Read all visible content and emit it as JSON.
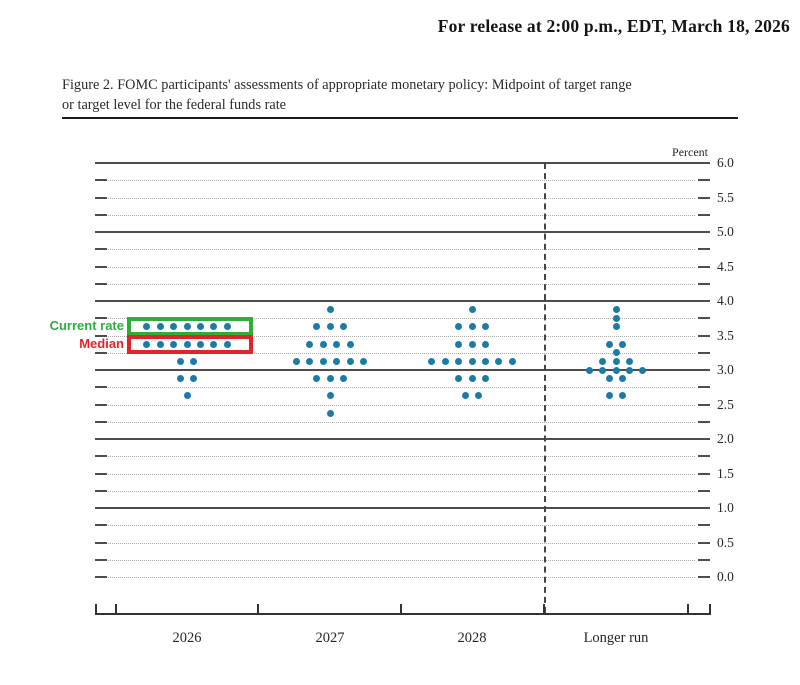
{
  "document": {
    "release_line": "For release at 2:00 p.m., EDT, March 18, 2026",
    "caption_line1": "Figure 2. FOMC participants' assessments of appropriate monetary policy: Midpoint of target range",
    "caption_line2": "or target level for the federal funds rate"
  },
  "chart_data": {
    "type": "scatter",
    "title": "FOMC participants' assessments of appropriate monetary policy: Midpoint of target range or target level for the federal funds rate",
    "ylabel": "Percent",
    "xlabel": "",
    "ylim": [
      0.0,
      6.0
    ],
    "y_label_step": 0.5,
    "gridline_step": 0.25,
    "grid": true,
    "legend_position": "none",
    "y_tick_labels": [
      "0.0",
      "0.5",
      "1.0",
      "1.5",
      "2.0",
      "2.5",
      "3.0",
      "3.5",
      "4.0",
      "4.5",
      "5.0",
      "5.5",
      "6.0"
    ],
    "categories": [
      "2026",
      "2027",
      "2028",
      "Longer run"
    ],
    "separator_after_category": "2028",
    "dot_color": "#1b7aa6",
    "series": [
      {
        "category": "2026",
        "dots": [
          {
            "rate": 3.625,
            "count": 7
          },
          {
            "rate": 3.375,
            "count": 7
          },
          {
            "rate": 3.125,
            "count": 2
          },
          {
            "rate": 2.875,
            "count": 2
          },
          {
            "rate": 2.625,
            "count": 1
          }
        ]
      },
      {
        "category": "2027",
        "dots": [
          {
            "rate": 3.875,
            "count": 1
          },
          {
            "rate": 3.625,
            "count": 3
          },
          {
            "rate": 3.375,
            "count": 4
          },
          {
            "rate": 3.125,
            "count": 6
          },
          {
            "rate": 2.875,
            "count": 3
          },
          {
            "rate": 2.625,
            "count": 1
          },
          {
            "rate": 2.375,
            "count": 1
          }
        ]
      },
      {
        "category": "2028",
        "dots": [
          {
            "rate": 3.875,
            "count": 1
          },
          {
            "rate": 3.625,
            "count": 3
          },
          {
            "rate": 3.375,
            "count": 3
          },
          {
            "rate": 3.125,
            "count": 7
          },
          {
            "rate": 2.875,
            "count": 3
          },
          {
            "rate": 2.625,
            "count": 2
          }
        ]
      },
      {
        "category": "Longer run",
        "dots": [
          {
            "rate": 3.875,
            "count": 1
          },
          {
            "rate": 3.75,
            "count": 1
          },
          {
            "rate": 3.625,
            "count": 1
          },
          {
            "rate": 3.375,
            "count": 2
          },
          {
            "rate": 3.25,
            "count": 1
          },
          {
            "rate": 3.125,
            "count": 3
          },
          {
            "rate": 3.0,
            "count": 5
          },
          {
            "rate": 2.875,
            "count": 2
          },
          {
            "rate": 2.625,
            "count": 2
          }
        ]
      }
    ],
    "annotations": [
      {
        "id": "current-rate",
        "label": "Current rate",
        "category": "2026",
        "rate": 3.625,
        "color": "#2cae38"
      },
      {
        "id": "median",
        "label": "Median",
        "category": "2026",
        "rate": 3.375,
        "color": "#e3222a"
      }
    ]
  }
}
